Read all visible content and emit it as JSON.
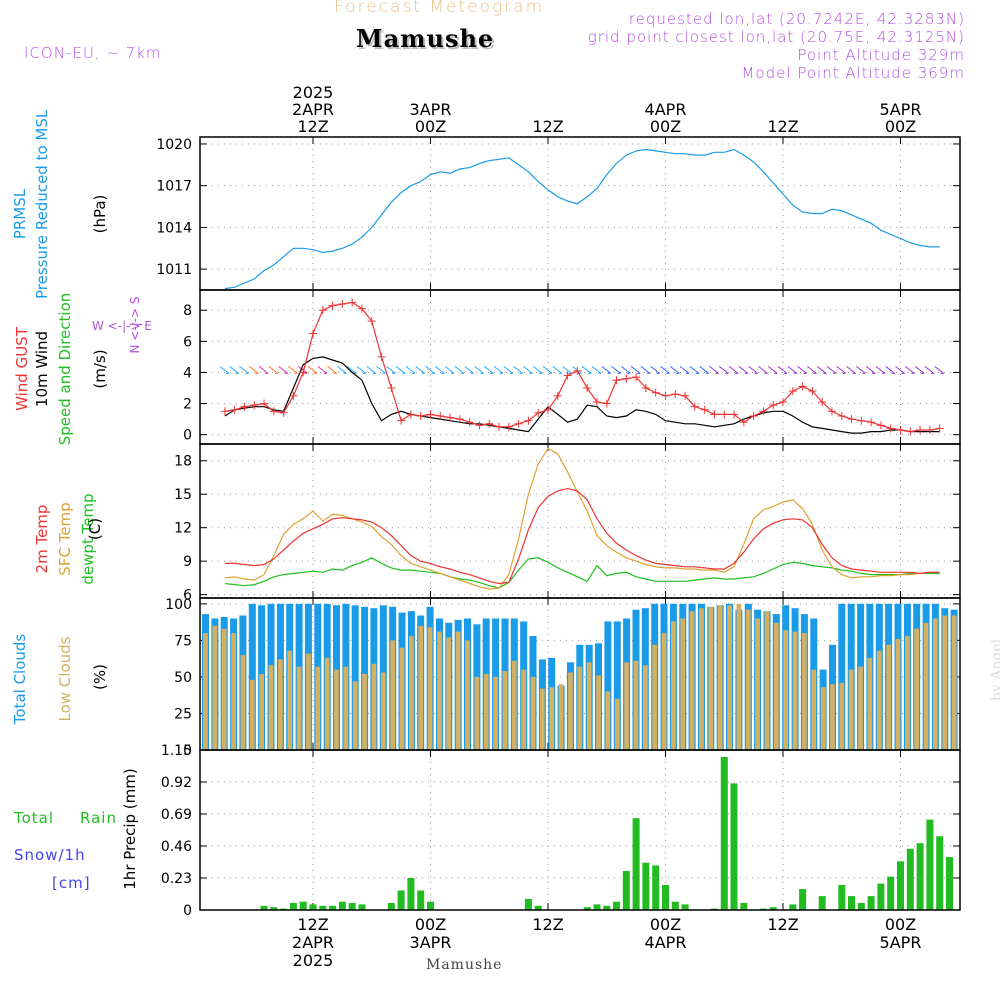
{
  "header": {
    "supertitle": "Forecast Meteogram",
    "site_name": "Mamushe",
    "model": "ICON-EU, ~ 7km",
    "requested": "requested lon,lat (20.7242E, 42.3283N)",
    "gridpoint": "grid point closest lon,lat (20.75E, 42.3125N)",
    "point_alt": "Point Altitude 329m",
    "model_alt": "Model Point Altitude 369m"
  },
  "footer": {
    "site_name": "Mamushe"
  },
  "watermark": "by Angel",
  "panel_labels": {
    "pressure": {
      "a": "PRMSL",
      "b": "Pressure Reduced to MSL",
      "unit": "(hPa)"
    },
    "wind": {
      "a": "Wind GUST",
      "b": "10m Wind",
      "c": "Speed and Direction",
      "unit": "(m/s)",
      "compass_ns": "N <-|-> S",
      "compass_we": "W <-|-> E"
    },
    "temp": {
      "a": "2m Temp",
      "b": "SFC Temp",
      "c": "dewpt Temp",
      "unit": "(C)"
    },
    "clouds": {
      "a": "Total Clouds",
      "b": "Low Clouds",
      "unit": "(%)"
    },
    "precip": {
      "a": "Total",
      "a2": "Rain",
      "b": "Snow/1h",
      "c": "[cm]",
      "ylabel": "1hr Precip (mm)"
    }
  },
  "colors": {
    "pressure": "#1a9be8",
    "gust": "#ee3333",
    "wind": "#000000",
    "temp2m": "#ee3333",
    "sfc": "#e0a030",
    "dewpt": "#20c020",
    "total_cloud": "#1a9be8",
    "low_cloud": "#d4b060",
    "precip": "#22bb22",
    "purple": "#b050e0",
    "snow": "#4444ee"
  },
  "chart_data": [
    {
      "type": "line",
      "name": "pressure",
      "time_start": "2025-04-02 03Z",
      "time_step_hours": 1,
      "x_top_ticks": [
        {
          "hour": 9,
          "lines": [
            "2025",
            "2APR",
            "12Z"
          ]
        },
        {
          "hour": 21,
          "lines": [
            "3APR",
            "00Z"
          ]
        },
        {
          "hour": 33,
          "lines": [
            "12Z"
          ]
        },
        {
          "hour": 45,
          "lines": [
            "4APR",
            "00Z"
          ]
        },
        {
          "hour": 57,
          "lines": [
            "12Z"
          ]
        },
        {
          "hour": 69,
          "lines": [
            "5APR",
            "00Z"
          ]
        }
      ],
      "yticks": [
        1011,
        1014,
        1017,
        1020
      ],
      "ylim": [
        1009.5,
        1020.5
      ],
      "values": [
        1009.6,
        1009.7,
        1010.0,
        1010.3,
        1010.9,
        1011.3,
        1011.9,
        1012.5,
        1012.5,
        1012.4,
        1012.2,
        1012.3,
        1012.5,
        1012.8,
        1013.3,
        1014.0,
        1014.9,
        1015.8,
        1016.5,
        1017.0,
        1017.3,
        1017.8,
        1018.0,
        1017.9,
        1018.2,
        1018.3,
        1018.6,
        1018.8,
        1018.9,
        1019.0,
        1018.5,
        1018.0,
        1017.3,
        1016.7,
        1016.2,
        1015.9,
        1015.7,
        1016.2,
        1016.8,
        1017.8,
        1018.6,
        1019.2,
        1019.5,
        1019.6,
        1019.5,
        1019.4,
        1019.3,
        1019.3,
        1019.2,
        1019.2,
        1019.4,
        1019.4,
        1019.6,
        1019.2,
        1018.7,
        1018.0,
        1017.2,
        1016.4,
        1015.6,
        1015.1,
        1015.0,
        1015.0,
        1015.3,
        1015.2,
        1014.9,
        1014.6,
        1014.3,
        1013.8,
        1013.5,
        1013.2,
        1012.9,
        1012.7,
        1012.6,
        1012.6
      ]
    },
    {
      "type": "line",
      "name": "wind",
      "yticks": [
        0,
        2,
        4,
        6,
        8
      ],
      "ylim": [
        -0.6,
        9.3
      ],
      "gust": [
        1.5,
        1.6,
        1.8,
        1.9,
        2.0,
        1.5,
        1.4,
        2.5,
        4.0,
        6.5,
        8.0,
        8.3,
        8.4,
        8.5,
        8.1,
        7.3,
        5.0,
        3.0,
        0.9,
        1.3,
        1.2,
        1.3,
        1.2,
        1.1,
        1.0,
        0.8,
        0.6,
        0.7,
        0.5,
        0.5,
        0.7,
        0.9,
        1.4,
        1.6,
        2.5,
        3.8,
        4.1,
        3.0,
        2.1,
        2.0,
        3.5,
        3.6,
        3.7,
        3.0,
        2.7,
        2.5,
        2.6,
        2.5,
        1.8,
        1.6,
        1.3,
        1.3,
        1.3,
        0.8,
        1.2,
        1.5,
        1.9,
        2.1,
        2.8,
        3.1,
        2.8,
        2.1,
        1.5,
        1.2,
        1.0,
        0.9,
        0.8,
        0.6,
        0.4,
        0.3,
        0.2,
        0.3,
        0.3,
        0.4
      ],
      "wind10m": [
        1.2,
        1.6,
        1.7,
        1.8,
        1.8,
        1.6,
        1.5,
        3.0,
        4.5,
        4.9,
        5.0,
        4.8,
        4.6,
        4.0,
        3.5,
        2.0,
        0.9,
        1.3,
        1.5,
        1.3,
        1.2,
        1.1,
        1.0,
        0.9,
        0.8,
        0.7,
        0.7,
        0.6,
        0.5,
        0.4,
        0.3,
        0.2,
        1.0,
        1.8,
        1.3,
        0.8,
        1.0,
        1.9,
        1.8,
        1.2,
        1.1,
        1.2,
        1.6,
        1.5,
        1.3,
        0.9,
        0.8,
        0.7,
        0.7,
        0.6,
        0.5,
        0.6,
        0.7,
        1.0,
        1.2,
        1.4,
        1.5,
        1.5,
        1.2,
        0.8,
        0.5,
        0.4,
        0.3,
        0.2,
        0.1,
        0.1,
        0.2,
        0.2,
        0.3,
        0.3,
        0.2,
        0.2,
        0.2,
        0.2
      ]
    },
    {
      "type": "line",
      "name": "temperature",
      "yticks": [
        6,
        9,
        12,
        15,
        18
      ],
      "ylim": [
        5.7,
        19.5
      ],
      "temp2m": [
        8.8,
        8.8,
        8.7,
        8.6,
        8.7,
        9.2,
        10.0,
        10.8,
        11.5,
        11.9,
        12.3,
        12.8,
        12.9,
        12.8,
        12.7,
        12.5,
        12.0,
        11.3,
        10.4,
        9.5,
        9.0,
        8.8,
        8.5,
        8.3,
        8.0,
        7.8,
        7.5,
        7.2,
        7.0,
        7.1,
        9.2,
        11.8,
        13.8,
        14.8,
        15.3,
        15.5,
        15.3,
        14.5,
        12.8,
        11.5,
        10.6,
        10.0,
        9.5,
        9.1,
        8.8,
        8.7,
        8.6,
        8.5,
        8.5,
        8.4,
        8.3,
        8.3,
        8.8,
        9.8,
        11.0,
        11.9,
        12.4,
        12.7,
        12.8,
        12.7,
        12.0,
        10.5,
        9.3,
        8.6,
        8.3,
        8.2,
        8.1,
        8.0,
        8.0,
        8.0,
        8.0,
        7.9,
        8.0,
        8.0
      ],
      "sfc": [
        7.5,
        7.6,
        7.4,
        7.3,
        7.8,
        9.5,
        11.4,
        12.3,
        12.8,
        13.5,
        12.6,
        13.2,
        13.1,
        12.8,
        12.5,
        12.1,
        11.2,
        10.5,
        9.5,
        8.8,
        8.5,
        8.2,
        7.9,
        7.6,
        7.3,
        7.0,
        6.7,
        6.5,
        6.6,
        7.8,
        11.0,
        15.0,
        17.7,
        19.1,
        18.6,
        17.0,
        15.2,
        13.5,
        11.3,
        10.4,
        9.8,
        9.3,
        9.0,
        8.7,
        8.5,
        8.4,
        8.4,
        8.3,
        8.3,
        8.2,
        8.2,
        8.0,
        8.5,
        10.5,
        12.8,
        13.6,
        13.9,
        14.3,
        14.5,
        13.7,
        12.3,
        10.0,
        8.5,
        7.8,
        7.5,
        7.6,
        7.6,
        7.7,
        7.7,
        7.8,
        7.8,
        7.9,
        8.0,
        8.0
      ],
      "dewpt": [
        7.0,
        6.9,
        6.8,
        6.9,
        7.2,
        7.6,
        7.8,
        7.9,
        8.0,
        8.1,
        8.0,
        8.3,
        8.2,
        8.6,
        8.9,
        9.3,
        8.8,
        8.4,
        8.2,
        8.2,
        8.1,
        8.0,
        7.9,
        7.6,
        7.4,
        7.3,
        7.1,
        6.8,
        6.6,
        7.1,
        8.2,
        9.2,
        9.3,
        8.9,
        8.4,
        8.0,
        7.6,
        7.2,
        8.6,
        7.7,
        7.9,
        8.0,
        7.6,
        7.4,
        7.2,
        7.2,
        7.2,
        7.2,
        7.3,
        7.4,
        7.5,
        7.4,
        7.4,
        7.5,
        7.6,
        7.9,
        8.3,
        8.7,
        8.9,
        8.8,
        8.6,
        8.5,
        8.4,
        8.2,
        8.1,
        7.9,
        7.8,
        7.8,
        7.8,
        7.8,
        7.9,
        7.9,
        7.9,
        7.9
      ]
    },
    {
      "type": "bar",
      "name": "clouds",
      "yticks": [
        0,
        25,
        50,
        75,
        100
      ],
      "ylim": [
        0,
        104
      ],
      "total": [
        93,
        90,
        91,
        90,
        92,
        100,
        99,
        100,
        100,
        100,
        100,
        100,
        100,
        100,
        99,
        100,
        99,
        98,
        97,
        99,
        98,
        94,
        95,
        92,
        98,
        90,
        87,
        89,
        90,
        86,
        90,
        90,
        90,
        90,
        88,
        78,
        62,
        63,
        44,
        60,
        72,
        72,
        73,
        88,
        88,
        90,
        96,
        97,
        100,
        100,
        100,
        100,
        100,
        100,
        98,
        99,
        100,
        96,
        100,
        96,
        95,
        93,
        99,
        97,
        93,
        90,
        55,
        72,
        100,
        100,
        100,
        100,
        100,
        100,
        100,
        100,
        100,
        100,
        100,
        97,
        96
      ],
      "low": [
        80,
        85,
        83,
        80,
        65,
        48,
        52,
        58,
        62,
        68,
        57,
        66,
        57,
        63,
        55,
        57,
        47,
        52,
        59,
        53,
        75,
        70,
        78,
        85,
        84,
        81,
        77,
        81,
        75,
        50,
        52,
        50,
        54,
        61,
        55,
        50,
        42,
        43,
        45,
        53,
        57,
        60,
        51,
        40,
        35,
        60,
        61,
        58,
        72,
        80,
        88,
        90,
        95,
        97,
        98,
        99,
        99,
        100,
        96,
        90,
        95,
        87,
        82,
        81,
        80,
        55,
        43,
        45,
        46,
        55,
        57,
        63,
        68,
        72,
        76,
        78,
        83,
        87,
        90,
        92,
        92
      ]
    },
    {
      "type": "bar",
      "name": "precipitation",
      "ylabel": "1hr Precip (mm)",
      "yticks": [
        0,
        0.23,
        0.46,
        0.69,
        0.92,
        1.15
      ],
      "ylim": [
        0,
        1.15
      ],
      "x_bottom_ticks": [
        {
          "hour": 9,
          "lines": [
            "12Z",
            "2APR",
            "2025"
          ]
        },
        {
          "hour": 21,
          "lines": [
            "00Z",
            "3APR"
          ]
        },
        {
          "hour": 33,
          "lines": [
            "12Z"
          ]
        },
        {
          "hour": 45,
          "lines": [
            "00Z",
            "4APR"
          ]
        },
        {
          "hour": 57,
          "lines": [
            "12Z"
          ]
        },
        {
          "hour": 69,
          "lines": [
            "00Z",
            "5APR"
          ]
        }
      ],
      "values": [
        0,
        0,
        0,
        0,
        0.03,
        0.02,
        0.01,
        0.05,
        0.06,
        0.04,
        0.03,
        0.03,
        0.06,
        0.05,
        0.04,
        0,
        0,
        0.05,
        0.14,
        0.23,
        0.14,
        0.06,
        0,
        0,
        0,
        0,
        0,
        0,
        0,
        0,
        0,
        0.08,
        0.03,
        0,
        0,
        0,
        0,
        0.02,
        0.04,
        0.03,
        0.06,
        0.28,
        0.66,
        0.34,
        0.32,
        0.18,
        0.06,
        0.04,
        0,
        0,
        0.01,
        1.1,
        0.91,
        0.05,
        0,
        0.01,
        0.02,
        0,
        0.04,
        0.15,
        0,
        0.1,
        0,
        0.18,
        0.1,
        0.05,
        0.1,
        0.19,
        0.24,
        0.35,
        0.44,
        0.48,
        0.65,
        0.53,
        0.38
      ]
    }
  ]
}
